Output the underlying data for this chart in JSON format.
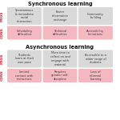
{
  "sections": [
    {
      "title": "Synchronous learning",
      "pros": [
        "Spontaneous\n& immediate\nsocial\ninteraction",
        "Foster\ninformation\nexchange",
        "Community\nbuilding"
      ],
      "cons": [
        "Scheduling\ndifficulties",
        "Technical\ndifficulties",
        "Accessibility\nlimitations"
      ]
    },
    {
      "title": "Asynchronous learning",
      "pros": [
        "Students\nlearn at their\nown pace",
        "More time to\nreflect on and\nengage with\nmaterial",
        "Accessible to a\nwider range of\nstudents"
      ],
      "cons": [
        "Limited\ncontact with\ninstructors",
        "Requires\ngreater self-\ndiscipline",
        "Loss of\ninformal\nlearning"
      ]
    }
  ],
  "bg_color": "#ffffff",
  "pros_cell_color": "#d9d9d9",
  "cons_cell_color": "#f4b8c1",
  "title_color": "#111111",
  "text_color": "#333333",
  "pros_label_color": "#cc2233",
  "cons_label_color": "#cc2233",
  "title_fontsize": 4.8,
  "cell_fontsize": 2.5,
  "label_fontsize": 3.2
}
